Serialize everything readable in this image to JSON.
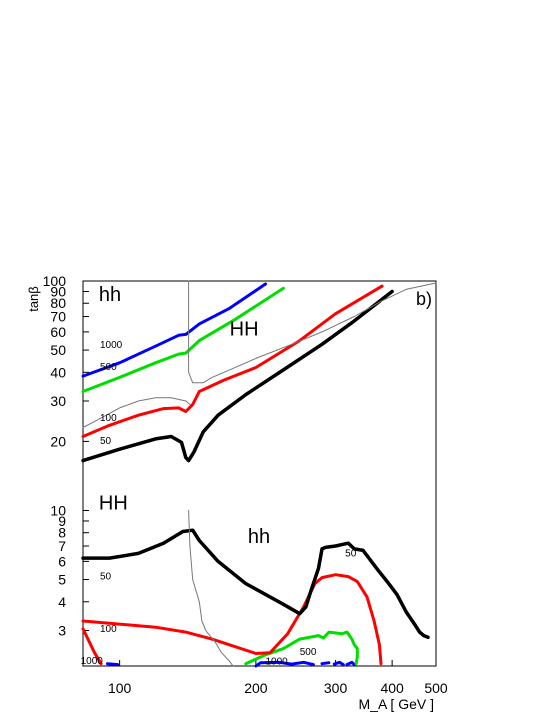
{
  "chart_data": {
    "type": "line",
    "x_scale": "log",
    "y_scale": "log",
    "xlim": [
      83,
      500
    ],
    "ylim": [
      2.1,
      100
    ],
    "xlabel": "M_A [ GeV ]",
    "ylabel": "tanβ",
    "panel_label": "b)",
    "x_ticks": [
      {
        "value": 100,
        "label": "100"
      },
      {
        "value": 200,
        "label": "200"
      },
      {
        "value": 300,
        "label": "300"
      },
      {
        "value": 400,
        "label": "400"
      },
      {
        "value": 500,
        "label": "500"
      }
    ],
    "y_ticks": [
      {
        "value": 3,
        "label": "3"
      },
      {
        "value": 4,
        "label": "4"
      },
      {
        "value": 5,
        "label": "5"
      },
      {
        "value": 6,
        "label": "6"
      },
      {
        "value": 7,
        "label": "7"
      },
      {
        "value": 8,
        "label": "8"
      },
      {
        "value": 9,
        "label": "9"
      },
      {
        "value": 10,
        "label": "10"
      },
      {
        "value": 20,
        "label": "20"
      },
      {
        "value": 30,
        "label": "30"
      },
      {
        "value": 40,
        "label": "40"
      },
      {
        "value": 50,
        "label": "50"
      },
      {
        "value": 60,
        "label": "60"
      },
      {
        "value": 70,
        "label": "70"
      },
      {
        "value": 80,
        "label": "80"
      },
      {
        "value": 90,
        "label": "90"
      },
      {
        "value": 100,
        "label": "100"
      }
    ],
    "region_labels": [
      {
        "text": "hh",
        "x": 90,
        "y": 82
      },
      {
        "text": "HH",
        "x": 175,
        "y": 58
      },
      {
        "text": "HH",
        "x": 90,
        "y": 10.1
      },
      {
        "text": "hh",
        "x": 192,
        "y": 7.2
      }
    ],
    "contour_labels": [
      {
        "text": "1000",
        "x": 90.5,
        "y": 51
      },
      {
        "text": "500",
        "x": 90.5,
        "y": 41
      },
      {
        "text": "100",
        "x": 90.5,
        "y": 24.5
      },
      {
        "text": "50",
        "x": 90.5,
        "y": 19.5
      },
      {
        "text": "50",
        "x": 90.5,
        "y": 5.0
      },
      {
        "text": "100",
        "x": 90.5,
        "y": 2.95
      },
      {
        "text": "1000",
        "x": 82,
        "y": 2.14
      },
      {
        "text": "500",
        "x": 250,
        "y": 2.35
      },
      {
        "text": "1000",
        "x": 210,
        "y": 2.13
      },
      {
        "text": "50",
        "x": 315,
        "y": 6.3
      }
    ],
    "series": [
      {
        "color": "#0000ff",
        "width": 3,
        "segments": [
          [
            [
              83,
              38.5
            ],
            [
              100,
              44
            ],
            [
              120,
              52
            ],
            [
              135,
              58
            ],
            [
              140,
              58.5
            ],
            [
              150,
              65
            ],
            [
              175,
              76
            ],
            [
              210,
              97
            ]
          ],
          [
            [
              200,
              2.1
            ],
            [
              205,
              2.17
            ],
            [
              225,
              2.18
            ],
            [
              240,
              2.14
            ],
            [
              255,
              2.18
            ],
            [
              268,
              2.13
            ]
          ],
          [
            [
              280,
              2.15
            ],
            [
              290,
              2.17
            ]
          ],
          [
            [
              298,
              2.14
            ],
            [
              306,
              2.18
            ],
            [
              312,
              2.13
            ]
          ],
          [
            [
              318,
              2.13
            ],
            [
              326,
              2.18
            ],
            [
              330,
              2.13
            ]
          ],
          [
            [
              94,
              2.15
            ],
            [
              99,
              2.13
            ]
          ]
        ]
      },
      {
        "color": "#00dd00",
        "width": 3,
        "segments": [
          [
            [
              83,
              33
            ],
            [
              100,
              38
            ],
            [
              120,
              44
            ],
            [
              135,
              48
            ],
            [
              140,
              48.5
            ],
            [
              150,
              55
            ],
            [
              180,
              68
            ],
            [
              230,
              93
            ]
          ],
          [
            [
              190,
              2.15
            ],
            [
              210,
              2.35
            ],
            [
              230,
              2.5
            ],
            [
              250,
              2.75
            ],
            [
              275,
              2.85
            ],
            [
              282,
              2.78
            ],
            [
              290,
              2.95
            ],
            [
              310,
              2.9
            ],
            [
              318,
              2.95
            ],
            [
              322,
              2.85
            ],
            [
              326,
              2.75
            ],
            [
              330,
              2.6
            ],
            [
              335,
              2.5
            ],
            [
              335,
              2.3
            ],
            [
              333,
              2.15
            ]
          ]
        ]
      },
      {
        "color": "#ff0000",
        "width": 3,
        "segments": [
          [
            [
              83,
              21
            ],
            [
              95,
              23.5
            ],
            [
              110,
              26
            ],
            [
              125,
              27.8
            ],
            [
              135,
              28
            ],
            [
              140,
              27
            ],
            [
              145,
              29
            ],
            [
              150,
              33
            ],
            [
              170,
              37
            ],
            [
              200,
              42
            ],
            [
              250,
              55
            ],
            [
              300,
              72
            ],
            [
              380,
              95
            ]
          ],
          [
            [
              83,
              3.3
            ],
            [
              120,
              3.1
            ],
            [
              140,
              2.95
            ],
            [
              160,
              2.75
            ],
            [
              180,
              2.55
            ],
            [
              200,
              2.38
            ],
            [
              215,
              2.4
            ],
            [
              235,
              2.9
            ],
            [
              255,
              3.8
            ],
            [
              270,
              4.8
            ],
            [
              280,
              5.1
            ],
            [
              300,
              5.25
            ],
            [
              320,
              5.15
            ],
            [
              335,
              4.9
            ],
            [
              352,
              4.2
            ],
            [
              365,
              3.3
            ],
            [
              375,
              2.6
            ],
            [
              378,
              2.15
            ]
          ],
          [
            [
              83,
              3.05
            ],
            [
              88,
              2.4
            ],
            [
              91,
              2.15
            ]
          ]
        ]
      },
      {
        "color": "#000000",
        "width": 3.5,
        "segments": [
          [
            [
              83,
              16.5
            ],
            [
              100,
              18.5
            ],
            [
              120,
              20.5
            ],
            [
              130,
              21
            ],
            [
              137,
              19.8
            ],
            [
              140,
              17
            ],
            [
              142,
              16.5
            ],
            [
              146,
              18
            ],
            [
              153,
              22
            ],
            [
              165,
              26
            ],
            [
              190,
              32
            ],
            [
              230,
              41
            ],
            [
              280,
              53
            ],
            [
              330,
              67
            ],
            [
              400,
              90
            ]
          ],
          [
            [
              83,
              6.2
            ],
            [
              95,
              6.2
            ],
            [
              110,
              6.5
            ],
            [
              125,
              7.2
            ],
            [
              138,
              8.1
            ],
            [
              145,
              8.2
            ],
            [
              150,
              7.4
            ],
            [
              165,
              6.0
            ],
            [
              190,
              4.8
            ],
            [
              230,
              3.9
            ],
            [
              250,
              3.55
            ],
            [
              258,
              3.8
            ],
            [
              265,
              4.5
            ],
            [
              275,
              5.6
            ],
            [
              280,
              6.8
            ],
            [
              285,
              6.9
            ],
            [
              300,
              7.0
            ],
            [
              310,
              7.1
            ],
            [
              320,
              7.2
            ],
            [
              330,
              6.8
            ],
            [
              345,
              6.7
            ],
            [
              360,
              6.0
            ],
            [
              375,
              5.4
            ],
            [
              390,
              4.9
            ],
            [
              410,
              4.3
            ],
            [
              430,
              3.6
            ],
            [
              448,
              3.2
            ],
            [
              460,
              2.95
            ],
            [
              470,
              2.85
            ],
            [
              480,
              2.8
            ]
          ]
        ]
      },
      {
        "color": "#777777",
        "width": 1,
        "segments": [
          [
            [
              142,
              100
            ],
            [
              142,
              40
            ],
            [
              145,
              36
            ],
            [
              153,
              36
            ],
            [
              160,
              38
            ],
            [
              175,
              41
            ],
            [
              200,
              46
            ],
            [
              240,
              53
            ],
            [
              280,
              60
            ],
            [
              330,
              70
            ],
            [
              380,
              82
            ],
            [
              430,
              92
            ],
            [
              500,
              98
            ]
          ],
          [
            [
              83,
              23
            ],
            [
              90,
              25
            ],
            [
              100,
              28
            ],
            [
              110,
              30
            ],
            [
              120,
              31
            ],
            [
              130,
              31
            ],
            [
              140,
              30
            ],
            [
              143,
              29
            ]
          ],
          [
            [
              142,
              10
            ],
            [
              143,
              7
            ],
            [
              145,
              5
            ],
            [
              150,
              4
            ],
            [
              152,
              3.3
            ],
            [
              155,
              3.0
            ],
            [
              157,
              2.9
            ],
            [
              162,
              2.7
            ],
            [
              168,
              2.4
            ],
            [
              175,
              2.2
            ],
            [
              178,
              2.1
            ]
          ]
        ]
      }
    ]
  }
}
